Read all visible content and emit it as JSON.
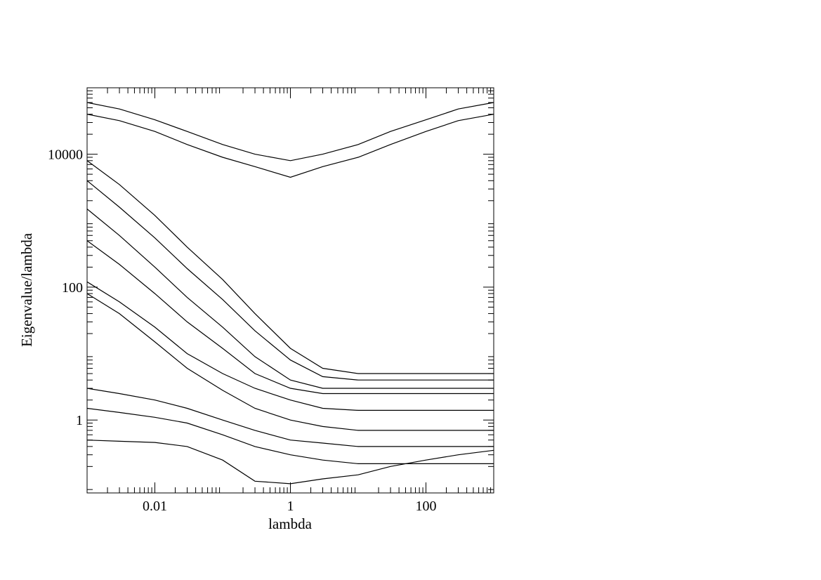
{
  "chart_data": {
    "type": "line",
    "title": "",
    "xlabel": "lambda",
    "ylabel": "Eigenvalue/lambda",
    "x_scale": "log",
    "y_scale": "log",
    "xlim": [
      0.001,
      1000
    ],
    "ylim": [
      0.08,
      100000
    ],
    "x_ticks": [
      {
        "value": 0.01,
        "label": "0.01"
      },
      {
        "value": 1,
        "label": "1"
      },
      {
        "value": 100,
        "label": "100"
      }
    ],
    "y_ticks": [
      {
        "value": 1,
        "label": "1"
      },
      {
        "value": 100,
        "label": "100"
      },
      {
        "value": 10000,
        "label": "10000"
      }
    ],
    "grid": false,
    "legend": "none",
    "colors": {
      "line": "#000000",
      "background": "#ffffff"
    },
    "series": [
      {
        "x": [
          0.001,
          0.003,
          0.01,
          0.03,
          0.1,
          0.3,
          1,
          3,
          10,
          30,
          100,
          300,
          1000
        ],
        "y": [
          60000,
          48000,
          33000,
          22000,
          14000,
          10000,
          8000,
          10000,
          14000,
          22000,
          33000,
          48000,
          60000
        ]
      },
      {
        "x": [
          0.001,
          0.003,
          0.01,
          0.03,
          0.1,
          0.3,
          1,
          3,
          10,
          30,
          100,
          300,
          1000
        ],
        "y": [
          40000,
          32000,
          22000,
          14000,
          9000,
          6500,
          4500,
          6500,
          9000,
          14000,
          22000,
          32000,
          40000
        ]
      },
      {
        "x": [
          0.001,
          0.003,
          0.01,
          0.03,
          0.1,
          0.3,
          1,
          3,
          10,
          30,
          100,
          300,
          1000
        ],
        "y": [
          8000,
          3500,
          1200,
          400,
          130,
          40,
          12,
          6,
          5,
          5,
          5,
          5,
          5
        ]
      },
      {
        "x": [
          0.001,
          0.003,
          0.01,
          0.03,
          0.1,
          0.3,
          1,
          3,
          10,
          30,
          100,
          300,
          1000
        ],
        "y": [
          4000,
          1600,
          550,
          190,
          65,
          22,
          8,
          4.5,
          4,
          4,
          4,
          4,
          4
        ]
      },
      {
        "x": [
          0.001,
          0.003,
          0.01,
          0.03,
          0.1,
          0.3,
          1,
          3,
          10,
          30,
          100,
          300,
          1000
        ],
        "y": [
          1500,
          600,
          200,
          70,
          25,
          9,
          4,
          3,
          3,
          3,
          3,
          3,
          3
        ]
      },
      {
        "x": [
          0.001,
          0.003,
          0.01,
          0.03,
          0.1,
          0.3,
          1,
          3,
          10,
          30,
          100,
          300,
          1000
        ],
        "y": [
          500,
          220,
          80,
          30,
          12,
          5,
          3,
          2.5,
          2.5,
          2.5,
          2.5,
          2.5,
          2.5
        ]
      },
      {
        "x": [
          0.001,
          0.003,
          0.01,
          0.03,
          0.1,
          0.3,
          1,
          3,
          10,
          30,
          100,
          300,
          1000
        ],
        "y": [
          120,
          60,
          25,
          10,
          5,
          3,
          2,
          1.5,
          1.4,
          1.4,
          1.4,
          1.4,
          1.4
        ]
      },
      {
        "x": [
          0.001,
          0.003,
          0.01,
          0.03,
          0.1,
          0.3,
          1,
          3,
          10,
          30,
          100,
          300,
          1000
        ],
        "y": [
          80,
          40,
          15,
          6,
          2.8,
          1.5,
          1,
          0.8,
          0.7,
          0.7,
          0.7,
          0.7,
          0.7
        ]
      },
      {
        "x": [
          0.001,
          0.003,
          0.01,
          0.03,
          0.1,
          0.3,
          1,
          3,
          10,
          30,
          100,
          300,
          1000
        ],
        "y": [
          3,
          2.5,
          2,
          1.5,
          1,
          0.7,
          0.5,
          0.45,
          0.4,
          0.4,
          0.4,
          0.4,
          0.4
        ]
      },
      {
        "x": [
          0.001,
          0.003,
          0.01,
          0.03,
          0.1,
          0.3,
          1,
          3,
          10,
          30,
          100,
          300,
          1000
        ],
        "y": [
          1.5,
          1.3,
          1.1,
          0.9,
          0.6,
          0.4,
          0.3,
          0.25,
          0.22,
          0.22,
          0.22,
          0.22,
          0.22
        ]
      },
      {
        "x": [
          0.001,
          0.003,
          0.01,
          0.03,
          0.1,
          0.3,
          1,
          3,
          10,
          30,
          100,
          300,
          1000
        ],
        "y": [
          0.5,
          0.48,
          0.46,
          0.4,
          0.25,
          0.12,
          0.11,
          0.13,
          0.15,
          0.2,
          0.25,
          0.3,
          0.35
        ]
      }
    ]
  }
}
